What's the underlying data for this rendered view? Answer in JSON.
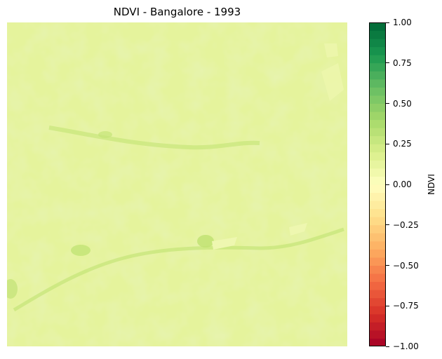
{
  "chart_data": {
    "type": "heatmap",
    "title": "NDVI - Bangalore - 1993",
    "colorbar": {
      "label": "NDVI",
      "range": [
        -1.0,
        1.0
      ],
      "colormap": "RdYlGn",
      "ticks": [
        "1.00",
        "0.75",
        "0.50",
        "0.25",
        "0.00",
        "−0.25",
        "−0.50",
        "−0.75",
        "−1.00"
      ],
      "tick_values": [
        1.0,
        0.75,
        0.5,
        0.25,
        0.0,
        -0.25,
        -0.5,
        -0.75,
        -1.0
      ],
      "levels": 40
    },
    "typical_value_range": [
      0.1,
      0.3
    ],
    "dominant_color": "#e4f29a",
    "axes": "off"
  }
}
